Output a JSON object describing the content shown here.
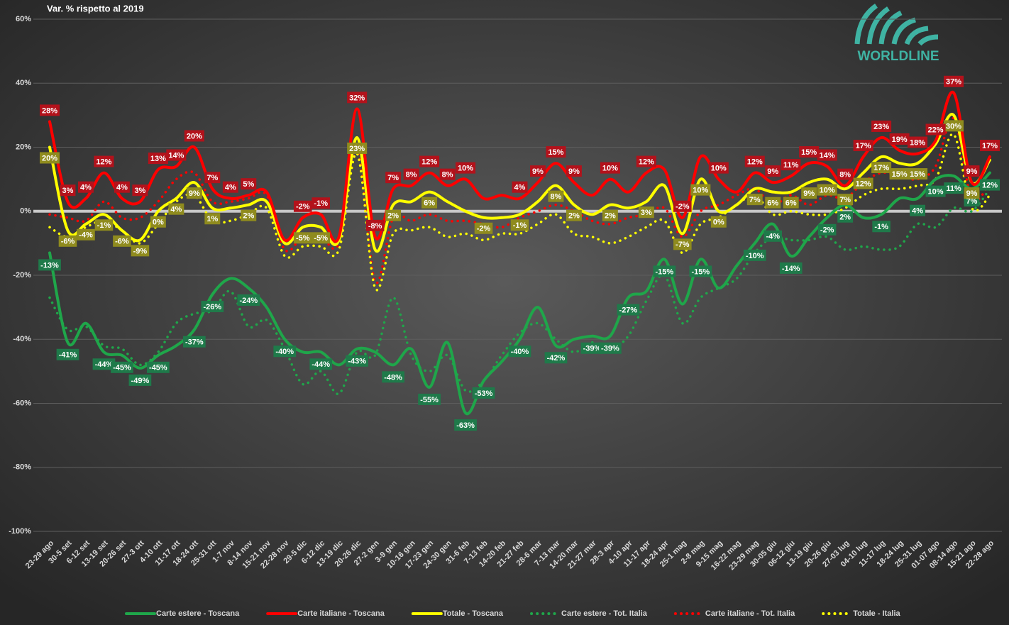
{
  "chart_data": {
    "type": "line",
    "title": "Var. % rispetto al 2019",
    "logo": "WORLDLINE",
    "categories": [
      "23-29 ago",
      "30-5 set",
      "6-12 set",
      "13-19 set",
      "20-26 set",
      "27-3 ott",
      "4-10 ott",
      "11-17 ott",
      "18-24 ott",
      "25-31 ott",
      "1-7 nov",
      "8-14 nov",
      "15-21 nov",
      "22-28 nov",
      "29-5 dic",
      "6-12 dic",
      "13-19 dic",
      "20-26 dic",
      "27-2 gen",
      "3-9 gen",
      "10-16 gen",
      "17-23 gen",
      "24-30 gen",
      "31-6 feb",
      "7-13 feb",
      "14-20 feb",
      "21-27 feb",
      "28-6 mar",
      "7-13 mar",
      "14-20 mar",
      "21-27 mar",
      "28-3 apr",
      "4-10 apr",
      "11-17 apr",
      "18-24 apr",
      "25-1 mag",
      "2-8 mag",
      "9-15 mag",
      "16-22 mag",
      "23-29 mag",
      "30-05 giu",
      "06-12 giu",
      "13-19 giu",
      "20-26 giu",
      "27-03 lug",
      "04-10 lug",
      "11-17 lug",
      "18-24 lug",
      "25-31 lug",
      "01-07 ago",
      "08-14 ago",
      "15-21 ago",
      "22-28 ago"
    ],
    "ylim": [
      -100,
      60
    ],
    "yticks": [
      {
        "value": -100,
        "label": "-100%"
      },
      {
        "value": -80,
        "label": "-80%"
      },
      {
        "value": -60,
        "label": "-60%"
      },
      {
        "value": -40,
        "label": "-40%"
      },
      {
        "value": -20,
        "label": "-20%"
      },
      {
        "value": 0,
        "label": "0%"
      },
      {
        "value": 20,
        "label": "20%"
      },
      {
        "value": 40,
        "label": "40%"
      },
      {
        "value": 60,
        "label": "60%"
      }
    ],
    "grid": true,
    "legend": "bottom",
    "series": [
      {
        "name": "Carte estere - Toscana",
        "color": "#1fa64a",
        "style": "solid",
        "label_color": "#1f7a4a",
        "values": [
          -13,
          -41,
          -35,
          -44,
          -45,
          -49,
          -45,
          -42,
          -37,
          -26,
          -21,
          -24,
          -30,
          -40,
          -44,
          -44,
          -48,
          -43,
          -44,
          -48,
          -43,
          -55,
          -41,
          -63,
          -53,
          -47,
          -40,
          -30,
          -42,
          -40,
          -39,
          -39,
          -27,
          -25,
          -15,
          -29,
          -15,
          -24,
          -17,
          -10,
          -4,
          -14,
          -8,
          -2,
          2,
          -2,
          -1,
          4,
          4,
          10,
          11,
          7,
          12
        ],
        "value_labels": [
          "-13%",
          "-41%",
          null,
          "-44%",
          "-45%",
          "-49%",
          "-45%",
          null,
          "-37%",
          "-26%",
          null,
          "-24%",
          null,
          "-40%",
          null,
          "-44%",
          null,
          "-43%",
          null,
          "-48%",
          null,
          "-55%",
          null,
          "-63%",
          "-53%",
          null,
          "-40%",
          null,
          "-42%",
          null,
          "-39%",
          "-39%",
          "-27%",
          null,
          "-15%",
          null,
          "-15%",
          null,
          null,
          "-10%",
          "-4%",
          "-14%",
          null,
          "-2%",
          "2%",
          null,
          "-1%",
          null,
          "4%",
          "10%",
          "11%",
          "7%",
          "12%"
        ]
      },
      {
        "name": "Carte italiane - Toscana",
        "color": "#ff0000",
        "style": "solid",
        "label_color": "#b3121b",
        "values": [
          28,
          3,
          4,
          12,
          4,
          3,
          13,
          14,
          20,
          7,
          4,
          5,
          6,
          -9,
          -2,
          -1,
          -8,
          32,
          -8,
          7,
          8,
          12,
          8,
          10,
          4,
          5,
          4,
          9,
          15,
          9,
          5,
          10,
          6,
          12,
          13,
          -2,
          17,
          10,
          6,
          12,
          9,
          11,
          15,
          14,
          8,
          17,
          23,
          19,
          18,
          22,
          37,
          9,
          17
        ],
        "value_labels": [
          "28%",
          "3%",
          "4%",
          "12%",
          "4%",
          "3%",
          "13%",
          "14%",
          "20%",
          "7%",
          "4%",
          "5%",
          null,
          null,
          "-2%",
          "-1%",
          null,
          "32%",
          "-8%",
          "7%",
          "8%",
          "12%",
          "8%",
          "10%",
          null,
          null,
          "4%",
          "9%",
          "15%",
          "9%",
          null,
          "10%",
          null,
          "12%",
          null,
          "-2%",
          null,
          "10%",
          null,
          "12%",
          "9%",
          "11%",
          "15%",
          "14%",
          "8%",
          "17%",
          "23%",
          "19%",
          "18%",
          "22%",
          "37%",
          "9%",
          "17%"
        ]
      },
      {
        "name": "Totale - Toscana",
        "color": "#ffff00",
        "style": "solid",
        "label_color": "#8f8b1e",
        "values": [
          20,
          -6,
          -4,
          -1,
          -6,
          -9,
          0,
          4,
          9,
          1,
          1,
          2,
          3,
          -10,
          -5,
          -5,
          -9,
          23,
          -12,
          2,
          3,
          6,
          3,
          0,
          -2,
          -2,
          -1,
          3,
          8,
          2,
          -1,
          2,
          1,
          3,
          8,
          -7,
          10,
          0,
          2,
          7,
          6,
          6,
          9,
          10,
          7,
          12,
          17,
          15,
          15,
          21,
          30,
          9,
          16
        ],
        "value_labels": [
          "20%",
          "-6%",
          "-4%",
          "-1%",
          "-6%",
          "-9%",
          "0%",
          "4%",
          "9%",
          "1%",
          null,
          "2%",
          null,
          null,
          "-5%",
          "-5%",
          null,
          "23%",
          null,
          "2%",
          null,
          "6%",
          null,
          null,
          "-2%",
          null,
          "-1%",
          null,
          "8%",
          "2%",
          null,
          "2%",
          null,
          "3%",
          null,
          "-7%",
          "10%",
          "0%",
          null,
          "7%",
          "6%",
          "6%",
          "9%",
          "10%",
          "7%",
          "12%",
          "17%",
          "15%",
          "15%",
          null,
          "30%",
          "9%",
          null
        ]
      },
      {
        "name": "Carte estere - Tot. Italia",
        "color": "#1fa64a",
        "style": "dotted",
        "values": [
          -27,
          -37,
          -36,
          -42,
          -43,
          -48,
          -44,
          -35,
          -32,
          -31,
          -25,
          -36,
          -34,
          -43,
          -54,
          -50,
          -57,
          -44,
          -45,
          -27,
          -45,
          -50,
          -45,
          -56,
          -53,
          -45,
          -38,
          -35,
          -40,
          -44,
          -41,
          -43,
          -39,
          -28,
          -20,
          -35,
          -27,
          -24,
          -21,
          -13,
          -8,
          -9,
          -9,
          -8,
          -12,
          -11,
          -12,
          -11,
          -4,
          -5,
          1,
          0,
          7
        ]
      },
      {
        "name": "Carte italiane - Tot. Italia",
        "color": "#ff0000",
        "style": "dotted",
        "values": [
          -1,
          -2,
          -3,
          3,
          -2,
          -2,
          3,
          10,
          12,
          3,
          3,
          4,
          5,
          -12,
          -8,
          -8,
          -10,
          20,
          -22,
          -2,
          -3,
          -1,
          -3,
          -3,
          -4,
          -5,
          -2,
          0,
          2,
          0,
          -3,
          -4,
          -2,
          -1,
          1,
          -8,
          0,
          2,
          5,
          7,
          2,
          5,
          2,
          5,
          4,
          9,
          12,
          11,
          10,
          14,
          29,
          4,
          9
        ]
      },
      {
        "name": "Totale - Italia",
        "color": "#ffff00",
        "style": "dotted",
        "values": [
          -5,
          -8,
          -5,
          -3,
          -6,
          -10,
          -4,
          3,
          5,
          -3,
          -3,
          -1,
          1,
          -14,
          -11,
          -11,
          -12,
          18,
          -24,
          -7,
          -6,
          -5,
          -8,
          -7,
          -9,
          -7,
          -7,
          -4,
          -1,
          -7,
          -8,
          -10,
          -8,
          -5,
          -3,
          -13,
          -4,
          -2,
          2,
          5,
          -1,
          0,
          -1,
          -1,
          1,
          5,
          7,
          7,
          8,
          10,
          24,
          1,
          5
        ]
      }
    ]
  }
}
